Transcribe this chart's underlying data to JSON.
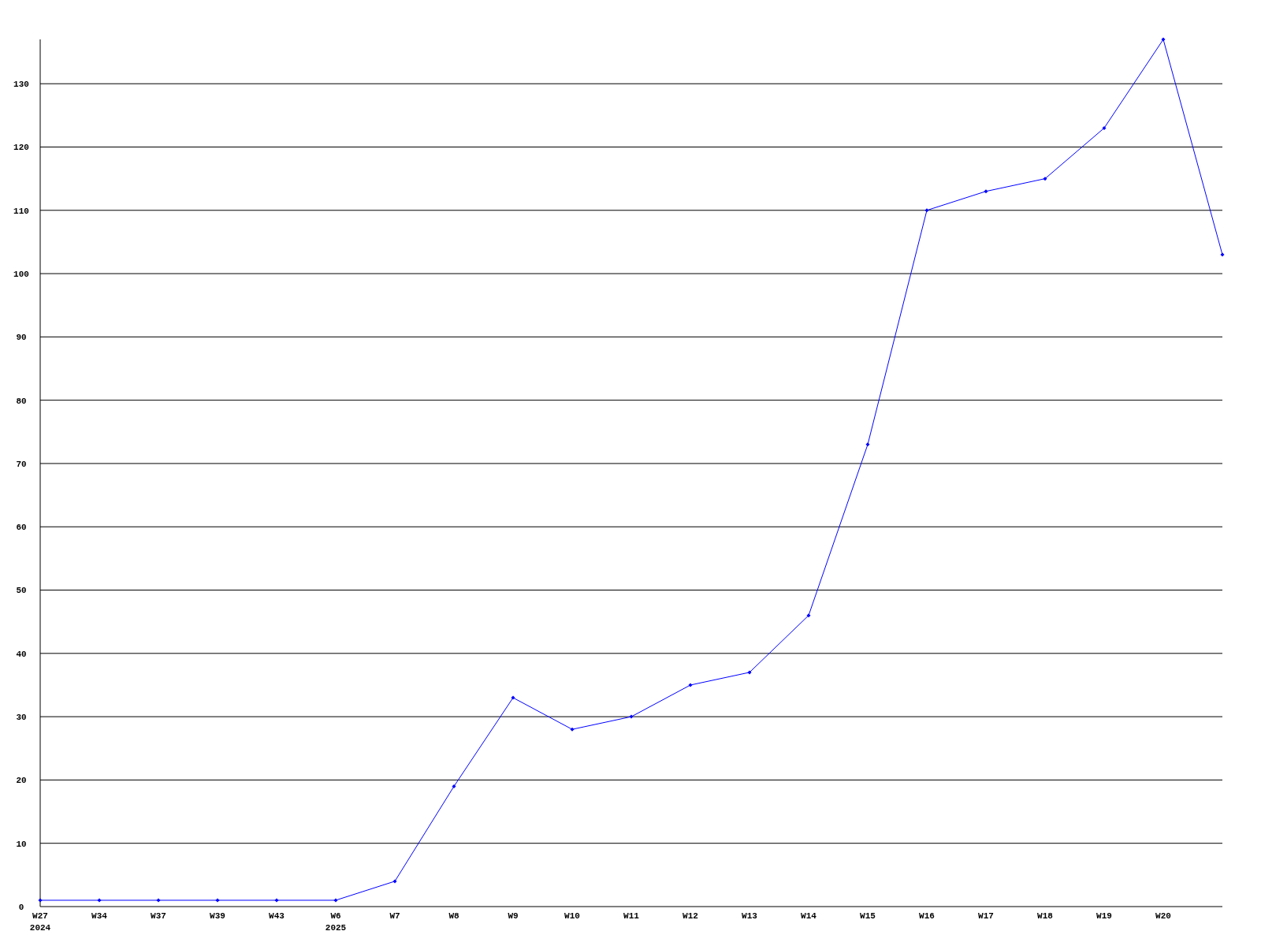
{
  "chart_data": {
    "type": "line",
    "categories": [
      "W27\n2024",
      "W34",
      "W37",
      "W39",
      "W43",
      "W6\n2025",
      "W7",
      "W8",
      "W9",
      "W10",
      "W11",
      "W12",
      "W13",
      "W14",
      "W15",
      "W16",
      "W17",
      "W18",
      "W19",
      "W20",
      null
    ],
    "series": [
      {
        "color": "#0000ff",
        "values": [
          1,
          1,
          1,
          1,
          1,
          1,
          4,
          19,
          33,
          28,
          30,
          35,
          37,
          46,
          73,
          110,
          113,
          115,
          123,
          137,
          103
        ]
      }
    ],
    "ylim": [
      0,
      137
    ],
    "yticks": [
      0,
      10,
      20,
      30,
      40,
      50,
      60,
      70,
      80,
      90,
      100,
      110,
      120,
      130
    ],
    "grid": "y",
    "marker": "diamond",
    "line_style": "solid"
  }
}
